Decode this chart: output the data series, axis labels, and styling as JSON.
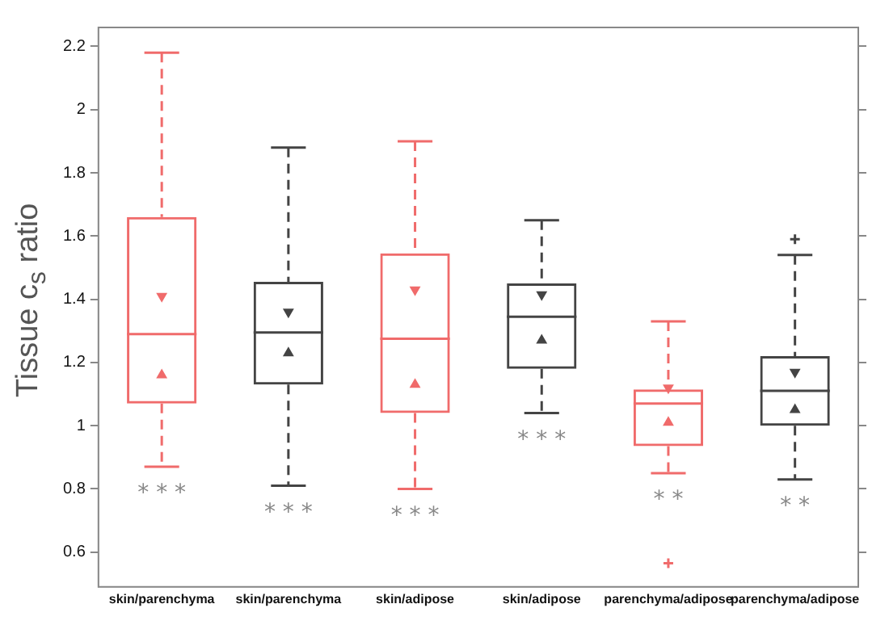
{
  "chart_data": {
    "type": "box",
    "ylabel": "Tissue c$_{s}$ ratio",
    "categories": [
      "skin/parenchyma",
      "skin/parenchyma",
      "skin/adipose",
      "skin/adipose",
      "parenchyma/adipose",
      "parenchyma/adipose"
    ],
    "colors": [
      "#f06b6b",
      "#444444",
      "#f06b6b",
      "#444444",
      "#f06b6b",
      "#444444"
    ],
    "boxes": [
      {
        "low": 0.87,
        "q1": 1.07,
        "median": 1.29,
        "q3": 1.66,
        "high": 2.18
      },
      {
        "low": 0.81,
        "q1": 1.13,
        "median": 1.295,
        "q3": 1.455,
        "high": 1.88
      },
      {
        "low": 0.8,
        "q1": 1.04,
        "median": 1.275,
        "q3": 1.545,
        "high": 1.9
      },
      {
        "low": 1.04,
        "q1": 1.18,
        "median": 1.345,
        "q3": 1.45,
        "high": 1.65
      },
      {
        "low": 0.85,
        "q1": 0.935,
        "median": 1.07,
        "q3": 1.115,
        "high": 1.33,
        "outliers": [
          0.565
        ]
      },
      {
        "low": 0.83,
        "q1": 1.0,
        "median": 1.11,
        "q3": 1.22,
        "high": 1.54,
        "outliers": [
          1.59
        ]
      }
    ],
    "series": [
      {
        "type": "scatter",
        "marker": "triangle",
        "values": [
          1.41,
          1.36,
          1.43,
          1.415,
          1.12,
          1.17
        ],
        "colors": [
          "#f06b6b",
          "#444444",
          "#f06b6b",
          "#444444",
          "#f06b6b",
          "#444444"
        ]
      },
      {
        "type": "scatter",
        "marker": "triangle",
        "values": [
          1.16,
          1.23,
          1.13,
          1.27,
          1.01,
          1.05
        ],
        "colors": [
          "#f06b6b",
          "#444444",
          "#f06b6b",
          "#444444",
          "#f06b6b",
          "#444444"
        ]
      }
    ],
    "annotations": [
      "* * *",
      "* * *",
      "* * *",
      "* * *",
      "* *",
      "* *"
    ],
    "ylim": [
      0.49,
      2.26
    ],
    "yticks": [
      0.6,
      0.8,
      1,
      1.2,
      1.4,
      1.6,
      1.8,
      2,
      2.2
    ],
    "grid": false,
    "legend": false
  }
}
